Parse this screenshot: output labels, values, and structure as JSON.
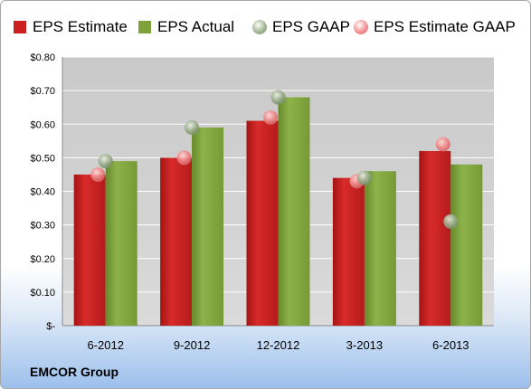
{
  "company": "EMCOR Group",
  "legend": [
    {
      "label": "EPS Estimate",
      "color": "#cc1f1f",
      "shape": "square"
    },
    {
      "label": "EPS Actual",
      "color": "#7fa33b",
      "shape": "square"
    },
    {
      "label": "EPS GAAP",
      "color": "#9bb08a",
      "shape": "circle"
    },
    {
      "label": "EPS Estimate GAAP",
      "color": "#f0888a",
      "shape": "circle"
    }
  ],
  "chart_data": {
    "type": "bar",
    "categories": [
      "6-2012",
      "9-2012",
      "12-2012",
      "3-2013",
      "6-2013"
    ],
    "series": [
      {
        "name": "EPS Estimate",
        "type": "bar",
        "color": "#cc1f1f",
        "values": [
          0.45,
          0.5,
          0.61,
          0.44,
          0.52
        ]
      },
      {
        "name": "EPS Actual",
        "type": "bar",
        "color": "#7fa33b",
        "values": [
          0.49,
          0.59,
          0.68,
          0.46,
          0.48
        ]
      },
      {
        "name": "EPS GAAP",
        "type": "scatter",
        "color": "#9bb08a",
        "values": [
          0.49,
          0.59,
          0.68,
          0.44,
          0.31
        ]
      },
      {
        "name": "EPS Estimate GAAP",
        "type": "scatter",
        "color": "#f0888a",
        "values": [
          0.45,
          0.5,
          0.62,
          0.43,
          0.54
        ]
      }
    ],
    "ylim": [
      0,
      0.8
    ],
    "yticks": [
      0,
      0.1,
      0.2,
      0.3,
      0.4,
      0.5,
      0.6,
      0.7,
      0.8
    ],
    "ytick_labels": [
      "$-",
      "$0.10",
      "$0.20",
      "$0.30",
      "$0.40",
      "$0.50",
      "$0.60",
      "$0.70",
      "$0.80"
    ],
    "grid": true,
    "legend_position": "top"
  }
}
